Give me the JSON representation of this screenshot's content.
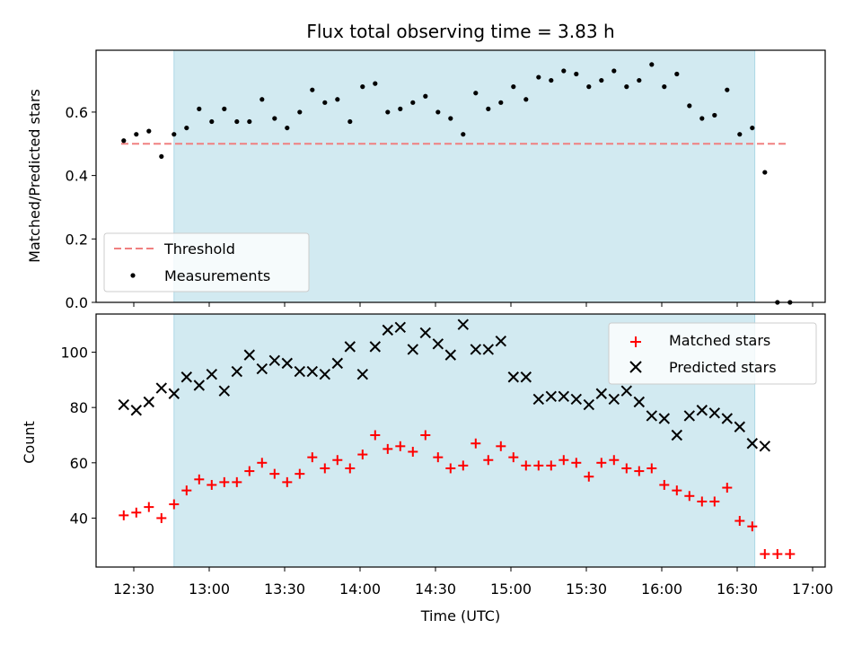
{
  "chart_data": [
    {
      "type": "scatter",
      "title": "Flux total observing time = 3.83 h",
      "xlabel": "",
      "ylabel": "Matched/Predicted stars",
      "ylim": [
        0,
        0.795
      ],
      "yticks": [
        0.0,
        0.2,
        0.4,
        0.6
      ],
      "ytick_labels": [
        "0.0",
        "0.2",
        "0.4",
        "0.6"
      ],
      "shaded_region": {
        "start": "12:46",
        "end": "16:37",
        "color": "#add8e6"
      },
      "legend_position": "lower-left",
      "threshold": {
        "name": "Threshold",
        "value": 0.5,
        "x_start": "12:25",
        "x_end": "16:50",
        "color": "#f08080"
      },
      "series": [
        {
          "name": "Measurements",
          "color": "#000000",
          "marker": "dot",
          "points": [
            [
              "12:26",
              0.51
            ],
            [
              "12:31",
              0.53
            ],
            [
              "12:36",
              0.54
            ],
            [
              "12:41",
              0.46
            ],
            [
              "12:46",
              0.53
            ],
            [
              "12:51",
              0.55
            ],
            [
              "12:56",
              0.61
            ],
            [
              "13:01",
              0.57
            ],
            [
              "13:06",
              0.61
            ],
            [
              "13:11",
              0.57
            ],
            [
              "13:16",
              0.57
            ],
            [
              "13:21",
              0.64
            ],
            [
              "13:26",
              0.58
            ],
            [
              "13:31",
              0.55
            ],
            [
              "13:36",
              0.6
            ],
            [
              "13:41",
              0.67
            ],
            [
              "13:46",
              0.63
            ],
            [
              "13:51",
              0.64
            ],
            [
              "13:56",
              0.57
            ],
            [
              "14:01",
              0.68
            ],
            [
              "14:06",
              0.69
            ],
            [
              "14:11",
              0.6
            ],
            [
              "14:16",
              0.61
            ],
            [
              "14:21",
              0.63
            ],
            [
              "14:26",
              0.65
            ],
            [
              "14:31",
              0.6
            ],
            [
              "14:36",
              0.58
            ],
            [
              "14:41",
              0.53
            ],
            [
              "14:46",
              0.66
            ],
            [
              "14:51",
              0.61
            ],
            [
              "14:56",
              0.63
            ],
            [
              "15:01",
              0.68
            ],
            [
              "15:06",
              0.64
            ],
            [
              "15:11",
              0.71
            ],
            [
              "15:16",
              0.7
            ],
            [
              "15:21",
              0.73
            ],
            [
              "15:26",
              0.72
            ],
            [
              "15:31",
              0.68
            ],
            [
              "15:36",
              0.7
            ],
            [
              "15:41",
              0.73
            ],
            [
              "15:46",
              0.68
            ],
            [
              "15:51",
              0.7
            ],
            [
              "15:56",
              0.75
            ],
            [
              "16:01",
              0.68
            ],
            [
              "16:06",
              0.72
            ],
            [
              "16:11",
              0.62
            ],
            [
              "16:16",
              0.58
            ],
            [
              "16:21",
              0.59
            ],
            [
              "16:26",
              0.67
            ],
            [
              "16:31",
              0.53
            ],
            [
              "16:36",
              0.55
            ],
            [
              "16:41",
              0.41
            ],
            [
              "16:46",
              0.0
            ],
            [
              "16:51",
              0.0
            ]
          ]
        }
      ]
    },
    {
      "type": "scatter",
      "title": "",
      "xlabel": "Time (UTC)",
      "ylabel": "Count",
      "ylim": [
        22.3,
        113.8
      ],
      "yticks": [
        40,
        60,
        80,
        100
      ],
      "ytick_labels": [
        "40",
        "60",
        "80",
        "100"
      ],
      "xlim": [
        "12:15",
        "17:05"
      ],
      "xticks": [
        "12:30",
        "13:00",
        "13:30",
        "14:00",
        "14:30",
        "15:00",
        "15:30",
        "16:00",
        "16:30",
        "17:00"
      ],
      "shaded_region": {
        "start": "12:46",
        "end": "16:37",
        "color": "#add8e6"
      },
      "legend_position": "top-right",
      "series": [
        {
          "name": "Matched stars",
          "color": "#ff0000",
          "marker": "plus",
          "points": [
            [
              "12:26",
              41
            ],
            [
              "12:31",
              42
            ],
            [
              "12:36",
              44
            ],
            [
              "12:41",
              40
            ],
            [
              "12:46",
              45
            ],
            [
              "12:51",
              50
            ],
            [
              "12:56",
              54
            ],
            [
              "13:01",
              52
            ],
            [
              "13:06",
              53
            ],
            [
              "13:11",
              53
            ],
            [
              "13:16",
              57
            ],
            [
              "13:21",
              60
            ],
            [
              "13:26",
              56
            ],
            [
              "13:31",
              53
            ],
            [
              "13:36",
              56
            ],
            [
              "13:41",
              62
            ],
            [
              "13:46",
              58
            ],
            [
              "13:51",
              61
            ],
            [
              "13:56",
              58
            ],
            [
              "14:01",
              63
            ],
            [
              "14:06",
              70
            ],
            [
              "14:11",
              65
            ],
            [
              "14:16",
              66
            ],
            [
              "14:21",
              64
            ],
            [
              "14:26",
              70
            ],
            [
              "14:31",
              62
            ],
            [
              "14:36",
              58
            ],
            [
              "14:41",
              59
            ],
            [
              "14:46",
              67
            ],
            [
              "14:51",
              61
            ],
            [
              "14:56",
              66
            ],
            [
              "15:01",
              62
            ],
            [
              "15:06",
              59
            ],
            [
              "15:11",
              59
            ],
            [
              "15:16",
              59
            ],
            [
              "15:21",
              61
            ],
            [
              "15:26",
              60
            ],
            [
              "15:31",
              55
            ],
            [
              "15:36",
              60
            ],
            [
              "15:41",
              61
            ],
            [
              "15:46",
              58
            ],
            [
              "15:51",
              57
            ],
            [
              "15:56",
              58
            ],
            [
              "16:01",
              52
            ],
            [
              "16:06",
              50
            ],
            [
              "16:11",
              48
            ],
            [
              "16:16",
              46
            ],
            [
              "16:21",
              46
            ],
            [
              "16:26",
              51
            ],
            [
              "16:31",
              39
            ],
            [
              "16:36",
              37
            ],
            [
              "16:41",
              27
            ],
            [
              "16:46",
              27
            ],
            [
              "16:51",
              27
            ]
          ]
        },
        {
          "name": "Predicted stars",
          "color": "#000000",
          "marker": "x",
          "points": [
            [
              "12:26",
              81
            ],
            [
              "12:31",
              79
            ],
            [
              "12:36",
              82
            ],
            [
              "12:41",
              87
            ],
            [
              "12:46",
              85
            ],
            [
              "12:51",
              91
            ],
            [
              "12:56",
              88
            ],
            [
              "13:01",
              92
            ],
            [
              "13:06",
              86
            ],
            [
              "13:11",
              93
            ],
            [
              "13:16",
              99
            ],
            [
              "13:21",
              94
            ],
            [
              "13:26",
              97
            ],
            [
              "13:31",
              96
            ],
            [
              "13:36",
              93
            ],
            [
              "13:41",
              93
            ],
            [
              "13:46",
              92
            ],
            [
              "13:51",
              96
            ],
            [
              "13:56",
              102
            ],
            [
              "14:01",
              92
            ],
            [
              "14:06",
              102
            ],
            [
              "14:11",
              108
            ],
            [
              "14:16",
              109
            ],
            [
              "14:21",
              101
            ],
            [
              "14:26",
              107
            ],
            [
              "14:31",
              103
            ],
            [
              "14:36",
              99
            ],
            [
              "14:41",
              110
            ],
            [
              "14:46",
              101
            ],
            [
              "14:51",
              101
            ],
            [
              "14:56",
              104
            ],
            [
              "15:01",
              91
            ],
            [
              "15:06",
              91
            ],
            [
              "15:11",
              83
            ],
            [
              "15:16",
              84
            ],
            [
              "15:21",
              84
            ],
            [
              "15:26",
              83
            ],
            [
              "15:31",
              81
            ],
            [
              "15:36",
              85
            ],
            [
              "15:41",
              83
            ],
            [
              "15:46",
              86
            ],
            [
              "15:51",
              82
            ],
            [
              "15:56",
              77
            ],
            [
              "16:01",
              76
            ],
            [
              "16:06",
              70
            ],
            [
              "16:11",
              77
            ],
            [
              "16:16",
              79
            ],
            [
              "16:21",
              78
            ],
            [
              "16:26",
              76
            ],
            [
              "16:31",
              73
            ],
            [
              "16:36",
              67
            ],
            [
              "16:41",
              66
            ]
          ]
        }
      ]
    }
  ]
}
